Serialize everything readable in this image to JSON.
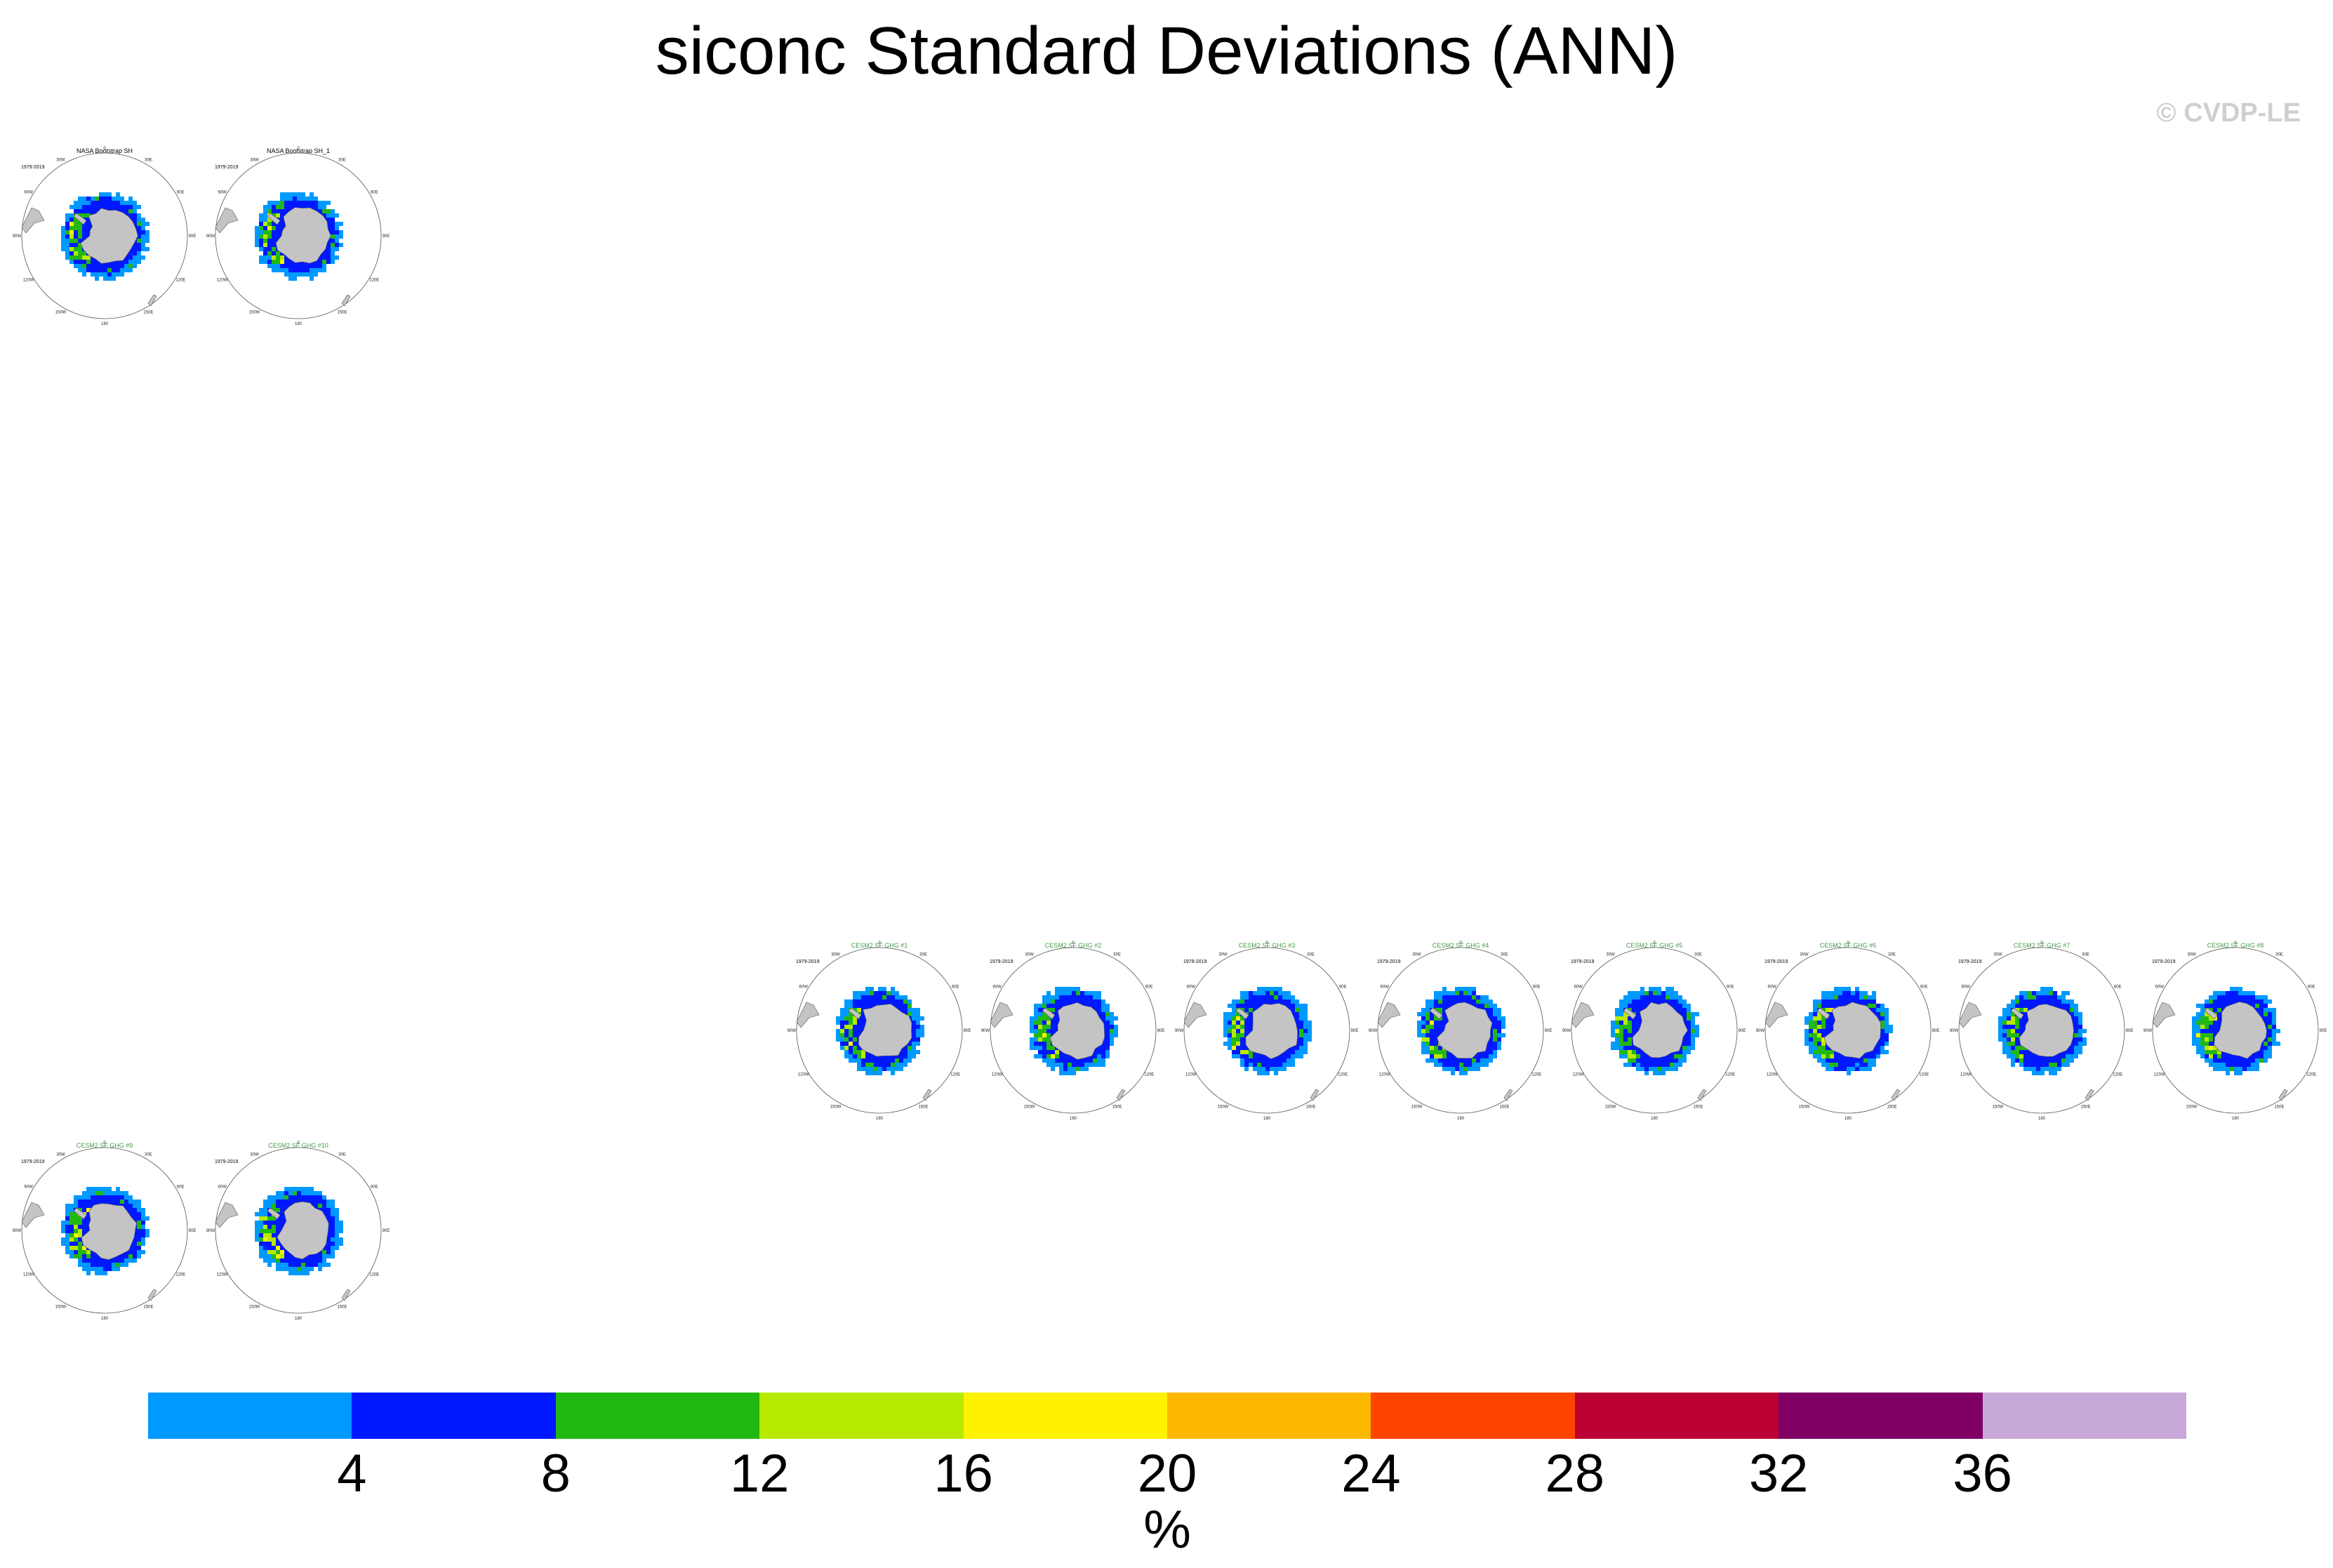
{
  "title": "siconc Standard Deviations (ANN)",
  "credit": "© CVDP-LE",
  "panels": [
    {
      "title": "NASA Bootstrap SH",
      "years": "1979-2019",
      "title_color": "#000000"
    },
    {
      "title": "NASA Bootstrap SH_1",
      "years": "1979-2019",
      "title_color": "#000000"
    },
    {
      "title": "CESM2 SF GHG #1",
      "years": "1979-2019",
      "title_color": "#4a9a4a"
    },
    {
      "title": "CESM2 SF GHG #2",
      "years": "1979-2019",
      "title_color": "#4a9a4a"
    },
    {
      "title": "CESM2 SF GHG #3",
      "years": "1979-2019",
      "title_color": "#4a9a4a"
    },
    {
      "title": "CESM2 SF GHG #4",
      "years": "1979-2019",
      "title_color": "#4a9a4a"
    },
    {
      "title": "CESM2 SF GHG #5",
      "years": "1979-2019",
      "title_color": "#4a9a4a"
    },
    {
      "title": "CESM2 SF GHG #6",
      "years": "1979-2019",
      "title_color": "#4a9a4a"
    },
    {
      "title": "CESM2 SF GHG #7",
      "years": "1979-2019",
      "title_color": "#4a9a4a"
    },
    {
      "title": "CESM2 SF GHG #8",
      "years": "1979-2019",
      "title_color": "#4a9a4a"
    },
    {
      "title": "CESM2 SF GHG #9",
      "years": "1979-2019",
      "title_color": "#4a9a4a"
    },
    {
      "title": "CESM2 SF GHG #10",
      "years": "1979-2019",
      "title_color": "#4a9a4a"
    }
  ],
  "longitude_labels": [
    "0",
    "30E",
    "60E",
    "90E",
    "120E",
    "150E",
    "180",
    "150W",
    "120W",
    "90W",
    "60W",
    "30W"
  ],
  "colorbar": {
    "colors": [
      "#0099ff",
      "#0018ff",
      "#22b812",
      "#b8ea00",
      "#fff200",
      "#ffb800",
      "#ff4400",
      "#bb0033",
      "#800066",
      "#c8a8d8"
    ],
    "ticks": [
      "4",
      "8",
      "12",
      "16",
      "20",
      "24",
      "28",
      "32",
      "36"
    ],
    "units": "%"
  },
  "map_colors": {
    "land": "#c4c4c4",
    "land_outline": "#555555",
    "cell_light_blue": "#0099ff",
    "cell_blue": "#0018ff",
    "cell_green": "#22b812",
    "cell_yellowgreen": "#b8ea00",
    "cell_yellow": "#fff200"
  }
}
